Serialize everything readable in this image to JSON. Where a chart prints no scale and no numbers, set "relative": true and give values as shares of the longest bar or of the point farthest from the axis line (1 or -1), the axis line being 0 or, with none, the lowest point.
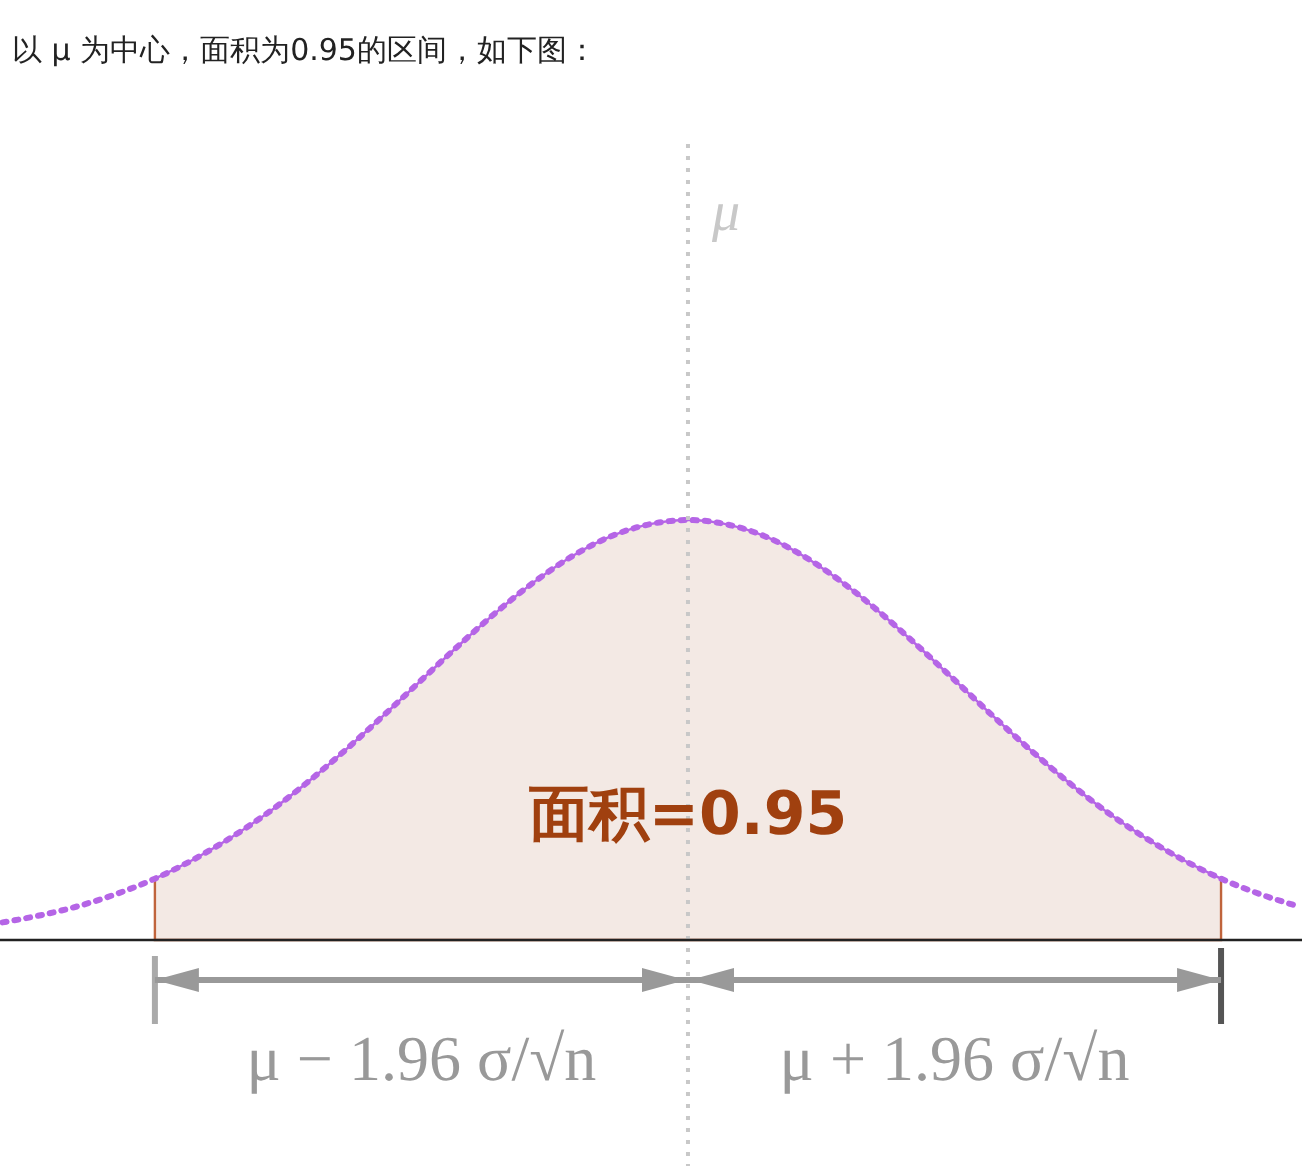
{
  "chart_data": {
    "type": "area",
    "title": "以 μ 为中心，面积为0.95的区间，如下图：",
    "relative": true,
    "categories": [
      null,
      null,
      null,
      null,
      null,
      null,
      null,
      null,
      null,
      null,
      null,
      null,
      null,
      null,
      null,
      null,
      null,
      null,
      null,
      null,
      null,
      null,
      null,
      null,
      null,
      null,
      null,
      null,
      null,
      null,
      null,
      null,
      null,
      null,
      null
    ],
    "series": [
      {
        "color": "#f3e9e4",
        "values": [
          null,
          null,
          null,
          null,
          0.146,
          0.191,
          0.244,
          0.305,
          0.375,
          0.452,
          0.534,
          0.619,
          0.703,
          0.783,
          0.855,
          0.916,
          0.962,
          0.99,
          1,
          0.99,
          0.962,
          0.916,
          0.855,
          0.783,
          0.703,
          0.619,
          0.534,
          0.452,
          0.375,
          0.305,
          0.244,
          0.191,
          0.146,
          null,
          null
        ]
      },
      {
        "type": "line",
        "color": "#b565e6",
        "line_style": "dotted",
        "values": [
          0.042,
          0.059,
          0.081,
          0.11,
          0.146,
          0.191,
          0.244,
          0.305,
          0.375,
          0.452,
          0.534,
          0.619,
          0.703,
          0.783,
          0.855,
          0.916,
          0.962,
          0.99,
          1,
          0.99,
          0.962,
          0.916,
          0.855,
          0.783,
          0.703,
          0.619,
          0.534,
          0.452,
          0.375,
          0.305,
          0.244,
          0.191,
          0.146,
          0.11,
          0.081
        ]
      }
    ],
    "ref_lines": [
      {
        "axis": "x",
        "label": "μ",
        "color": "#c8c8c8",
        "line_style": "dotted"
      }
    ],
    "annotations": [
      "面积=0.95",
      "μ − 1.96 σ/√n",
      "μ + 1.96 σ/√n"
    ]
  }
}
